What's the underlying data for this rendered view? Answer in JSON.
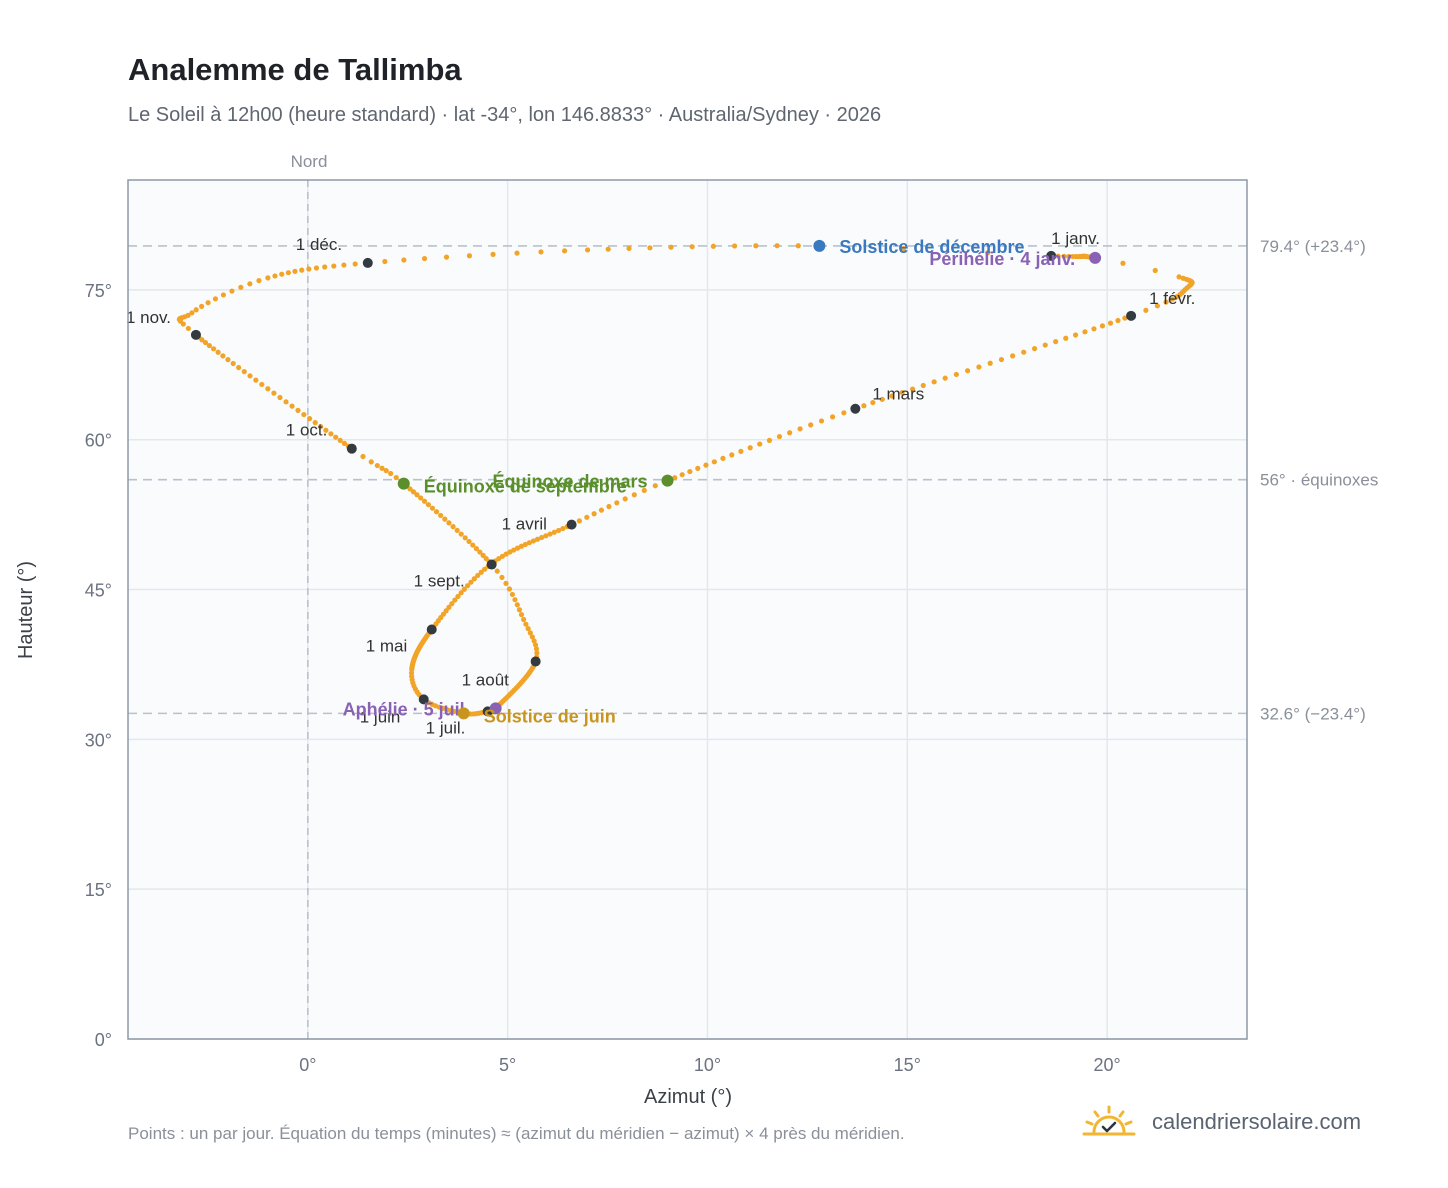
{
  "header": {
    "title": "Analemme de Tallimba",
    "subtitle": "Le Soleil à 12h00 (heure standard) · lat -34°, lon 146.8833° · Australia/Sydney · 2026"
  },
  "footer": {
    "note": "Points : un par jour. Équation du temps (minutes) ≈ (azimut du méridien − azimut) × 4 près du méridien.",
    "brand": "calendriersolaire.com",
    "brand_icon": "sun-check-icon"
  },
  "colors": {
    "curve": "#f2a428",
    "month_marker": "#333a40",
    "december_solstice": "#3a78bf",
    "june_solstice": "#c8961e",
    "equinox": "#5a8f2c",
    "perihelion_aphelion": "#8a62b5",
    "plot_bg": "#f9fbfd",
    "grid": "#e3e8ee",
    "reference_line": "#b8c2cc"
  },
  "chart_data": {
    "type": "scatter",
    "title": "Analemme de Tallimba",
    "xlabel": "Azimut (°)",
    "ylabel": "Hauteur (°)",
    "xlim": [
      -4.5,
      23.5
    ],
    "ylim": [
      0,
      86
    ],
    "x_ticks": [
      0,
      5,
      10,
      15,
      20
    ],
    "x_tick_labels": [
      "0°",
      "5°",
      "10°",
      "15°",
      "20°"
    ],
    "y_ticks": [
      0,
      15,
      30,
      45,
      60,
      75
    ],
    "y_tick_labels": [
      "0°",
      "15°",
      "30°",
      "45°",
      "60°",
      "75°"
    ],
    "grid": true,
    "north_line": {
      "x": 0,
      "label": "Nord"
    },
    "reference_lines": [
      {
        "y": 79.4,
        "label": "79.4° (+23.4°)"
      },
      {
        "y": 56,
        "label": "56° · équinoxes"
      },
      {
        "y": 32.6,
        "label": "32.6° (−23.4°)"
      }
    ],
    "month_markers": [
      {
        "label": "1 janv.",
        "x": 18.6,
        "y": 78.4
      },
      {
        "label": "1 févr.",
        "x": 20.6,
        "y": 72.4
      },
      {
        "label": "1 mars",
        "x": 13.7,
        "y": 63.1
      },
      {
        "label": "1 avril",
        "x": 6.6,
        "y": 51.5
      },
      {
        "label": "1 mai",
        "x": 3.1,
        "y": 41.0
      },
      {
        "label": "1 juin",
        "x": 2.9,
        "y": 34.0
      },
      {
        "label": "1 juil.",
        "x": 4.5,
        "y": 32.8
      },
      {
        "label": "1 août",
        "x": 5.7,
        "y": 37.8
      },
      {
        "label": "1 sept.",
        "x": 4.6,
        "y": 47.5
      },
      {
        "label": "1 oct.",
        "x": 1.1,
        "y": 59.1
      },
      {
        "label": "1 nov.",
        "x": -2.8,
        "y": 70.5
      },
      {
        "label": "1 déc.",
        "x": 1.5,
        "y": 77.7
      }
    ],
    "events": [
      {
        "label": "Solstice de décembre",
        "x": 12.8,
        "y": 79.4,
        "color_key": "december_solstice"
      },
      {
        "label": "Périhélie · 4 janv.",
        "x": 19.7,
        "y": 78.2,
        "color_key": "perihelion_aphelion"
      },
      {
        "label": "Équinoxe de mars",
        "x": 9.0,
        "y": 55.9,
        "color_key": "equinox"
      },
      {
        "label": "Équinoxe de septembre",
        "x": 2.4,
        "y": 55.6,
        "color_key": "equinox"
      },
      {
        "label": "Aphélie · 5 juil.",
        "x": 4.7,
        "y": 33.1,
        "color_key": "perihelion_aphelion"
      },
      {
        "label": "Solstice de juin",
        "x": 3.9,
        "y": 32.6,
        "color_key": "june_solstice"
      }
    ],
    "daily_points": {
      "description": "Points : un par jour",
      "path": [
        [
          12.8,
          79.4
        ],
        [
          18.6,
          78.4
        ],
        [
          19.7,
          78.2
        ],
        [
          21.8,
          76.3
        ],
        [
          22.0,
          75.2
        ],
        [
          20.6,
          72.4
        ],
        [
          13.7,
          63.1
        ],
        [
          9.0,
          55.9
        ],
        [
          6.6,
          51.5
        ],
        [
          4.6,
          47.6
        ],
        [
          3.1,
          41.0
        ],
        [
          2.6,
          37.0
        ],
        [
          2.9,
          34.0
        ],
        [
          3.9,
          32.6
        ],
        [
          4.5,
          32.8
        ],
        [
          4.7,
          33.1
        ],
        [
          5.7,
          37.8
        ],
        [
          5.4,
          42.0
        ],
        [
          4.6,
          47.5
        ],
        [
          2.4,
          55.6
        ],
        [
          1.1,
          59.1
        ],
        [
          -2.8,
          70.5
        ],
        [
          -2.9,
          72.7
        ],
        [
          -1.0,
          76.2
        ],
        [
          1.5,
          77.7
        ],
        [
          7.0,
          79.0
        ],
        [
          12.8,
          79.4
        ]
      ],
      "day_counts": [
        3,
        18,
        3,
        10,
        10,
        28,
        20,
        11,
        20,
        20,
        30,
        10,
        12,
        9,
        4,
        27,
        10,
        10,
        24,
        8,
        31,
        9,
        10,
        12,
        10,
        11
      ]
    }
  }
}
